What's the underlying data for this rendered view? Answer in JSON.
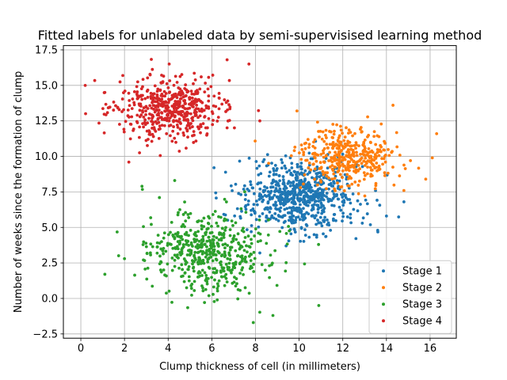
{
  "chart_data": {
    "type": "scatter",
    "title": "Fitted labels for unlabeled data by semi-supervisised learning method",
    "xlabel": "Clump thickness of cell (in millimeters)",
    "ylabel": "Number of weeks since the formation of clump",
    "xlim": [
      -0.8,
      17.2
    ],
    "ylim": [
      -2.8,
      17.8
    ],
    "xticks": [
      0,
      2,
      4,
      6,
      8,
      10,
      12,
      14,
      16
    ],
    "yticks": [
      -2.5,
      0.0,
      2.5,
      5.0,
      7.5,
      10.0,
      12.5,
      15.0,
      17.5
    ],
    "xtick_labels": [
      "0",
      "2",
      "4",
      "6",
      "8",
      "10",
      "12",
      "14",
      "16"
    ],
    "ytick_labels": [
      "−2.5",
      "0.0",
      "2.5",
      "5.0",
      "7.5",
      "10.0",
      "12.5",
      "15.0",
      "17.5"
    ],
    "grid": true,
    "legend_position": "lower-right",
    "series": [
      {
        "name": "Stage 1",
        "color": "#1f77b4",
        "center": [
          10.0,
          7.2
        ],
        "spread": [
          1.3,
          1.2
        ],
        "count": 700,
        "extra": [
          [
            7.8,
            6.2
          ],
          [
            6.1,
            9.2
          ],
          [
            11.0,
            5.3
          ],
          [
            14.0,
            5.8
          ],
          [
            14.8,
            6.8
          ],
          [
            13.6,
            4.8
          ],
          [
            8.2,
            3.2
          ]
        ]
      },
      {
        "name": "Stage 2",
        "color": "#ff7f0e",
        "center": [
          12.2,
          9.9
        ],
        "spread": [
          1.1,
          1.0
        ],
        "count": 400,
        "extra": [
          [
            16.3,
            11.6
          ],
          [
            15.8,
            8.4
          ],
          [
            14.3,
            13.6
          ],
          [
            16.1,
            9.9
          ],
          [
            9.9,
            13.2
          ],
          [
            15.1,
            9.7
          ],
          [
            14.8,
            7.6
          ]
        ]
      },
      {
        "name": "Stage 3",
        "color": "#2ca02c",
        "center": [
          5.7,
          3.3
        ],
        "spread": [
          1.4,
          1.5
        ],
        "count": 520,
        "extra": [
          [
            1.1,
            1.7
          ],
          [
            2.0,
            2.8
          ],
          [
            4.3,
            8.3
          ],
          [
            7.9,
            -1.7
          ],
          [
            8.8,
            -1.2
          ],
          [
            10.9,
            -0.5
          ],
          [
            2.8,
            7.9
          ],
          [
            3.6,
            7.1
          ]
        ]
      },
      {
        "name": "Stage 4",
        "color": "#d62728",
        "center": [
          4.0,
          13.3
        ],
        "spread": [
          1.3,
          1.1
        ],
        "count": 500,
        "extra": [
          [
            0.2,
            15.0
          ],
          [
            7.7,
            16.5
          ],
          [
            8.2,
            12.5
          ],
          [
            2.2,
            9.6
          ],
          [
            1.1,
            14.5
          ],
          [
            6.7,
            16.8
          ]
        ]
      }
    ]
  }
}
